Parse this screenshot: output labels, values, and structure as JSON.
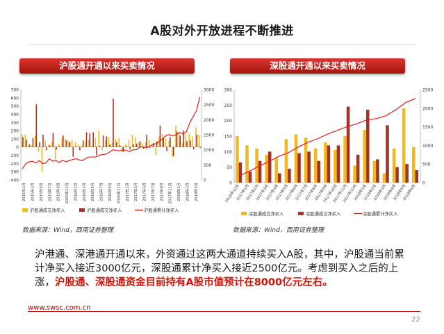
{
  "title": "A股对外开放进程不断推进",
  "left_panel": {
    "banner": "沪股通开通以来买卖情况",
    "source": "数据来源：Wind，西南证券整理"
  },
  "right_panel": {
    "banner": "深股通开通以来买卖情况",
    "source": "数据来源：Wind，西南证券整理"
  },
  "body": {
    "text": "沪港通、深港通开通以来，外资通过这两大通道持续买入A股，其中，沪股通当前累计净买入接近3000亿元，深股通累计净买入接近2500亿元。考虑到买入之后的上涨，",
    "highlight": "沪股通、深股通资金目前持有A股市值预计在8000亿元左右。"
  },
  "footer": {
    "url": "www.swsc.com.cn",
    "page": "22"
  },
  "colors": {
    "yellow": "#f2b81f",
    "brown": "#a33222",
    "red": "#e31e16",
    "banner": "#c0211a"
  },
  "chart_data": [
    {
      "type": "bar",
      "x_tick_labels": [
        "2015年1月",
        "2015年3月",
        "2015年5月",
        "2015年7月",
        "2015年9月",
        "2015年11月",
        "2016年1月",
        "2016年3月",
        "2016年5月",
        "2016年7月",
        "2016年9月",
        "2016年11月",
        "2017年1月",
        "2017年3月",
        "2017年5月",
        "2017年7月",
        "2017年9月",
        "2017年11月",
        "2018年1月",
        "2018年3月",
        "2018年5月"
      ],
      "ylim_left": [
        -400,
        700
      ],
      "yticks_left": [
        -400,
        -300,
        -200,
        -100,
        0,
        100,
        200,
        300,
        400,
        500,
        600,
        700
      ],
      "ylim_right": [
        0,
        3000
      ],
      "yticks_right": [
        0,
        500,
        1000,
        1500,
        2000,
        2500,
        3000
      ],
      "series": [
        {
          "name": "沪股通成交净买入",
          "type": "bar",
          "axis": "left",
          "values": [
            160,
            150,
            30,
            20,
            140,
            -60,
            -310,
            80,
            30,
            60,
            -150,
            40,
            120,
            100,
            70,
            90,
            60,
            30,
            20,
            70,
            90,
            20,
            110,
            200,
            -40,
            80,
            120,
            50,
            100,
            110,
            -60,
            40,
            90,
            150,
            120,
            60,
            50,
            60,
            90,
            30,
            -100,
            130,
            160,
            100,
            80,
            -120,
            260,
            180,
            50,
            150,
            160,
            130,
            240,
            150
          ]
        },
        {
          "name": "沪股通成交净买入",
          "type": "bar",
          "axis": "left",
          "values": [
            120,
            90,
            30,
            110,
            520,
            60,
            150,
            -40,
            20,
            170,
            -30,
            10,
            140,
            80,
            60,
            -120,
            10,
            -40,
            80,
            180,
            170,
            180,
            -100,
            10,
            140,
            130,
            30,
            590,
            60,
            20,
            -60,
            10,
            -30,
            30,
            40,
            70,
            -20,
            150,
            -10,
            50,
            70,
            260,
            110,
            -50,
            120,
            -110,
            190,
            140,
            200,
            70,
            80,
            -30,
            150,
            -10
          ]
        },
        {
          "name": "沪股通累计净买入",
          "type": "line",
          "axis": "right",
          "values": [
            370,
            540,
            600,
            620,
            560,
            640,
            540,
            560,
            700,
            620,
            640,
            580,
            650,
            600,
            640,
            680,
            700,
            660,
            640,
            720,
            760,
            760,
            760,
            820,
            840,
            860,
            920,
            1000,
            980,
            960,
            1000,
            980,
            940,
            1000,
            1000,
            1080,
            1100,
            1060,
            1120,
            1180,
            1200,
            1280,
            1380,
            1480,
            1500,
            1460,
            1500,
            1580,
            1520,
            1600,
            1900,
            2100,
            2300,
            2750
          ]
        }
      ]
    },
    {
      "type": "bar",
      "x_tick_labels": [
        "2016年12月",
        "2017年1月",
        "2017年2月",
        "2017年3月",
        "2017年4月",
        "2017年5月",
        "2017年6月",
        "2017年7月",
        "2017年8月",
        "2017年9月",
        "2017年10月",
        "2017年11月",
        "2017年12月",
        "2018年1月",
        "2018年2月",
        "2018年3月",
        "2018年4月",
        "2018年5月",
        "2018年6月"
      ],
      "ylim_left": [
        0,
        300
      ],
      "yticks_left": [
        0,
        50,
        100,
        150,
        200,
        250,
        300
      ],
      "ylim_right": [
        0,
        2500
      ],
      "yticks_right": [
        0,
        500,
        1000,
        1500,
        2000,
        2500
      ],
      "series": [
        {
          "name": "深股通成交净买入",
          "type": "bar",
          "axis": "left",
          "values": [
            150,
            120,
            110,
            90,
            80,
            140,
            155,
            145,
            110,
            130,
            105,
            150,
            55,
            170,
            70,
            30,
            110,
            240,
            115
          ]
        },
        {
          "name": "深股通成交净买入",
          "type": "bar",
          "axis": "left",
          "values": [
            65,
            35,
            70,
            100,
            30,
            45,
            95,
            100,
            70,
            120,
            120,
            245,
            90,
            235,
            75,
            185,
            50,
            60,
            40
          ]
        },
        {
          "name": "深股通累计净买入",
          "type": "line",
          "axis": "right",
          "values": [
            180,
            300,
            440,
            560,
            700,
            800,
            950,
            1080,
            1180,
            1300,
            1400,
            1500,
            1580,
            1680,
            1720,
            1800,
            1960,
            2150,
            2260
          ]
        }
      ]
    }
  ]
}
